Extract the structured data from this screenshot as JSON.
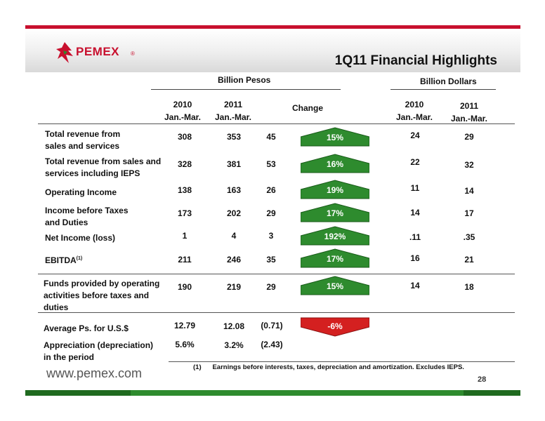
{
  "header": {
    "logo_text": "PEMEX",
    "logo_reg": "®",
    "title": "1Q11 Financial Highlights"
  },
  "groups": {
    "pesos": "Billion Pesos",
    "dollars": "Billion Dollars"
  },
  "columns": {
    "p2010_year": "2010",
    "p2010_period": "Jan.-Mar.",
    "p2011_year": "2011",
    "p2011_period": "Jan.-Mar.",
    "change": "Change",
    "d2010_year": "2010",
    "d2010_period": "Jan.-Mar.",
    "d2011_year": "2011",
    "d2011_period": "Jan.-Mar."
  },
  "rows": [
    {
      "label1": "Total revenue from",
      "label2": "sales and services",
      "p2010": "308",
      "p2011": "353",
      "chg": "45",
      "pct": "15%",
      "d2010": "24",
      "d2011": "29"
    },
    {
      "label1": "Total revenue from sales and",
      "label2": "services including IEPS",
      "p2010": "328",
      "p2011": "381",
      "chg": "53",
      "pct": "16%",
      "d2010": "22",
      "d2011": "32"
    },
    {
      "label1": "Operating Income",
      "label2": "",
      "p2010": "138",
      "p2011": "163",
      "chg": "26",
      "pct": "19%",
      "d2010": "11",
      "d2011": "14"
    },
    {
      "label1": "Income before Taxes",
      "label2": "and Duties",
      "p2010": "173",
      "p2011": "202",
      "chg": "29",
      "pct": "17%",
      "d2010": "14",
      "d2011": "17"
    },
    {
      "label1": "Net Income (loss)",
      "label2": "",
      "p2010": "1",
      "p2011": "4",
      "chg": "3",
      "pct": "192%",
      "d2010": ".11",
      "d2011": ".35"
    },
    {
      "label1": "EBITDA",
      "label_sup": "(1)",
      "label2": "",
      "p2010": "211",
      "p2011": "246",
      "chg": "35",
      "pct": "17%",
      "d2010": "16",
      "d2011": "21"
    }
  ],
  "funds": {
    "label1": "Funds provided by operating",
    "label2": "activities before taxes and",
    "label3": "duties",
    "p2010": "190",
    "p2011": "219",
    "chg": "29",
    "pct": "15%",
    "d2010": "14",
    "d2011": "18"
  },
  "fx": {
    "avg_label": "Average Ps. for U.S.$",
    "avg_2010": "12.79",
    "avg_2011": "12.08",
    "avg_chg": "(0.71)",
    "avg_pct": "-6%",
    "app_label1": "Appreciation (depreciation)",
    "app_label2": "in the period",
    "app_2010": "5.6%",
    "app_2011": "3.2%",
    "app_chg": "(2.43)"
  },
  "footer": {
    "footnote_num": "(1)",
    "footnote_text": "Earnings before interests, taxes, depreciation and amortization. Excludes IEPS.",
    "url": "www.pemex.com",
    "page": "28"
  },
  "colors": {
    "brand_red": "#c8102e",
    "up_green": "#2e8b2e",
    "down_red": "#d42020"
  }
}
